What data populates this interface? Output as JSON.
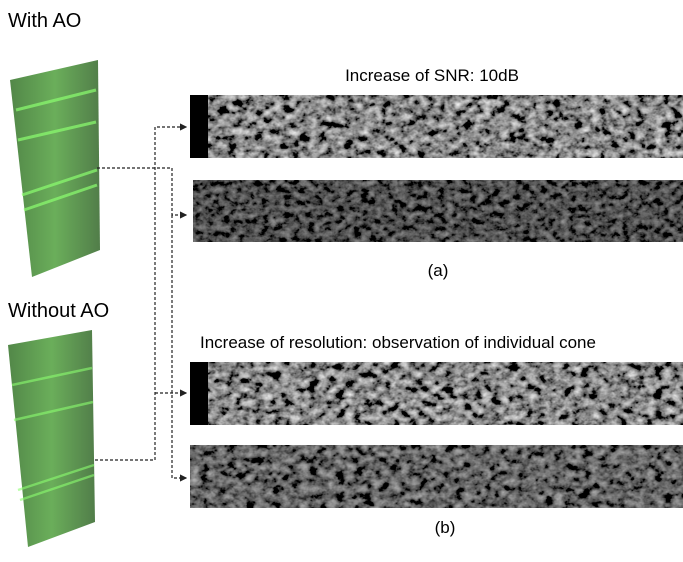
{
  "left_labels": [
    "With AO",
    "Without AO"
  ],
  "panel_groups": [
    {
      "title": "Increase of SNR: 10dB",
      "caption": "(a)"
    },
    {
      "title": "Increase of resolution: observation of individual cone",
      "caption": "(b)"
    }
  ]
}
